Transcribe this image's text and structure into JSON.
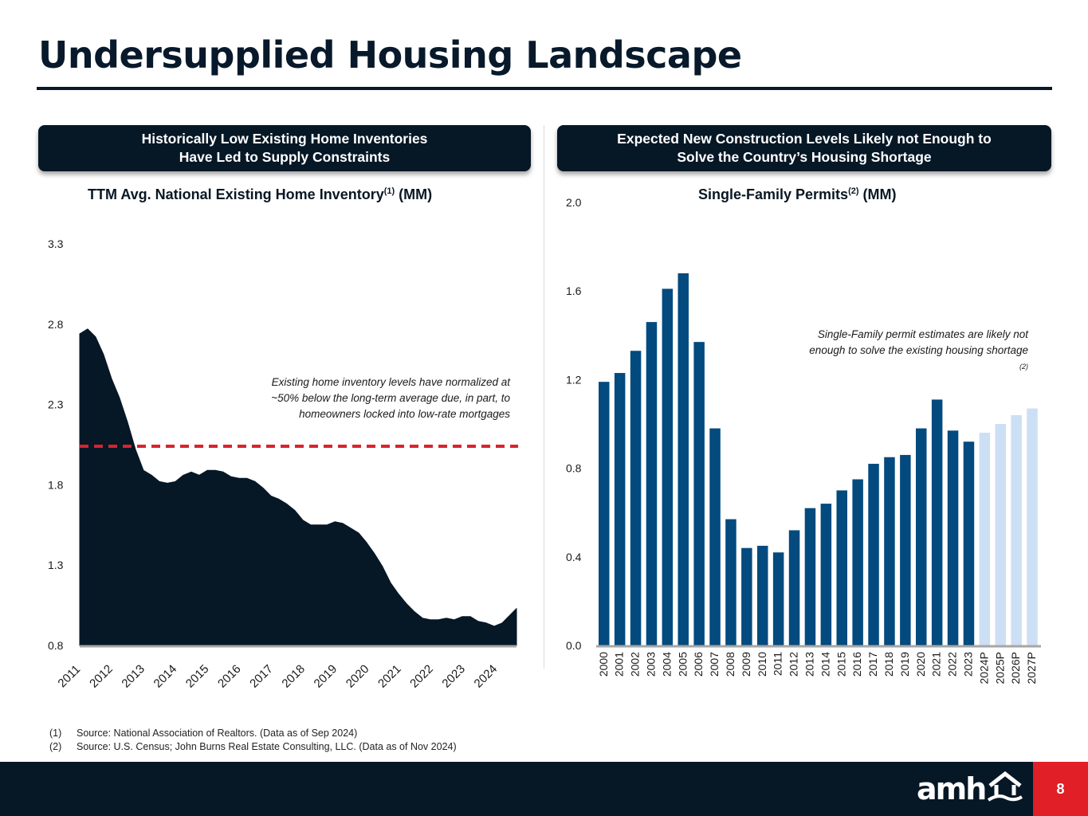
{
  "page": {
    "title": "Undersupplied Housing Landscape",
    "page_number": "8",
    "logo_text": "amh"
  },
  "left_panel": {
    "banner_line1": "Historically Low Existing Home Inventories",
    "banner_line2": "Have Led to Supply Constraints",
    "chart_title": "TTM Avg. National Existing Home Inventory",
    "chart_title_sup": "(1)",
    "chart_title_unit": " (MM)",
    "note": "Existing home inventory levels have normalized at ~50% below the long-term average due, in part, to homeowners locked into low-rate mortgages"
  },
  "right_panel": {
    "banner_line1": "Expected New Construction Levels Likely not Enough to",
    "banner_line2": "Solve the Country’s Housing Shortage",
    "chart_title": "Single-Family Permits",
    "chart_title_sup": "(2)",
    "chart_title_unit": " (MM)",
    "note": "Single-Family permit estimates are likely not enough to solve the existing housing shortage",
    "note_sup": "(2)"
  },
  "footnotes": [
    {
      "num": "(1)",
      "text": "Source: National Association of Realtors. (Data as of Sep 2024)"
    },
    {
      "num": "(2)",
      "text": "Source: U.S. Census; John Burns Real Estate Consulting, LLC. (Data as of Nov 2024)"
    }
  ],
  "colors": {
    "navy": "#061726",
    "bar_actual": "#034a7e",
    "bar_projected": "#cddff5",
    "dashed_line": "#d9232e",
    "axis": "#a6a6a6",
    "accent_red": "#e11f26"
  },
  "chart_data": [
    {
      "type": "area",
      "title": "TTM Avg. National Existing Home Inventory (MM)",
      "xlabel": "",
      "ylabel": "",
      "ylim": [
        0.8,
        3.3
      ],
      "yticks": [
        "0.8",
        "1.3",
        "1.8",
        "2.3",
        "2.8",
        "3.3"
      ],
      "ytick_values": [
        0.8,
        1.3,
        1.8,
        2.3,
        2.8,
        3.3
      ],
      "xticks": [
        "2011",
        "2012",
        "2013",
        "2014",
        "2015",
        "2016",
        "2017",
        "2018",
        "2019",
        "2020",
        "2021",
        "2022",
        "2023",
        "2024"
      ],
      "x_range": [
        2011.0,
        2024.7
      ],
      "reference_line": {
        "value": 2.04,
        "style": "dashed",
        "label": "long-term average"
      },
      "series": [
        {
          "name": "Existing Home Inventory",
          "x": [
            2011.0,
            2011.25,
            2011.5,
            2011.75,
            2012.0,
            2012.25,
            2012.5,
            2012.75,
            2013.0,
            2013.25,
            2013.5,
            2013.75,
            2014.0,
            2014.25,
            2014.5,
            2014.75,
            2015.0,
            2015.25,
            2015.5,
            2015.75,
            2016.0,
            2016.25,
            2016.5,
            2016.75,
            2017.0,
            2017.25,
            2017.5,
            2017.75,
            2018.0,
            2018.25,
            2018.5,
            2018.75,
            2019.0,
            2019.25,
            2019.5,
            2019.75,
            2020.0,
            2020.25,
            2020.5,
            2020.75,
            2021.0,
            2021.25,
            2021.5,
            2021.75,
            2022.0,
            2022.25,
            2022.5,
            2022.75,
            2023.0,
            2023.25,
            2023.5,
            2023.75,
            2024.0,
            2024.25,
            2024.5,
            2024.7
          ],
          "values": [
            2.74,
            2.77,
            2.72,
            2.61,
            2.46,
            2.34,
            2.19,
            2.02,
            1.89,
            1.86,
            1.82,
            1.81,
            1.82,
            1.86,
            1.88,
            1.86,
            1.89,
            1.89,
            1.88,
            1.85,
            1.84,
            1.84,
            1.82,
            1.78,
            1.73,
            1.71,
            1.68,
            1.64,
            1.58,
            1.55,
            1.55,
            1.55,
            1.57,
            1.56,
            1.53,
            1.5,
            1.44,
            1.37,
            1.29,
            1.19,
            1.12,
            1.06,
            1.01,
            0.97,
            0.96,
            0.96,
            0.97,
            0.96,
            0.98,
            0.98,
            0.95,
            0.94,
            0.92,
            0.94,
            0.99,
            1.03
          ]
        }
      ]
    },
    {
      "type": "bar",
      "title": "Single-Family Permits (MM)",
      "xlabel": "",
      "ylabel": "",
      "ylim": [
        0.0,
        2.0
      ],
      "yticks": [
        "0.0",
        "0.4",
        "0.8",
        "1.2",
        "1.6",
        "2.0"
      ],
      "ytick_values": [
        0.0,
        0.4,
        0.8,
        1.2,
        1.6,
        2.0
      ],
      "categories": [
        "2000",
        "2001",
        "2002",
        "2003",
        "2004",
        "2005",
        "2006",
        "2007",
        "2008",
        "2009",
        "2010",
        "2011",
        "2012",
        "2013",
        "2014",
        "2015",
        "2016",
        "2017",
        "2018",
        "2019",
        "2020",
        "2021",
        "2022",
        "2023",
        "2024P",
        "2025P",
        "2026P",
        "2027P"
      ],
      "values": [
        1.19,
        1.23,
        1.33,
        1.46,
        1.61,
        1.68,
        1.37,
        0.98,
        0.57,
        0.44,
        0.45,
        0.42,
        0.52,
        0.62,
        0.64,
        0.7,
        0.75,
        0.82,
        0.85,
        0.86,
        0.98,
        1.11,
        0.97,
        0.92,
        0.96,
        1.0,
        1.04,
        1.07
      ],
      "projected": [
        false,
        false,
        false,
        false,
        false,
        false,
        false,
        false,
        false,
        false,
        false,
        false,
        false,
        false,
        false,
        false,
        false,
        false,
        false,
        false,
        false,
        false,
        false,
        false,
        true,
        true,
        true,
        true
      ]
    }
  ]
}
